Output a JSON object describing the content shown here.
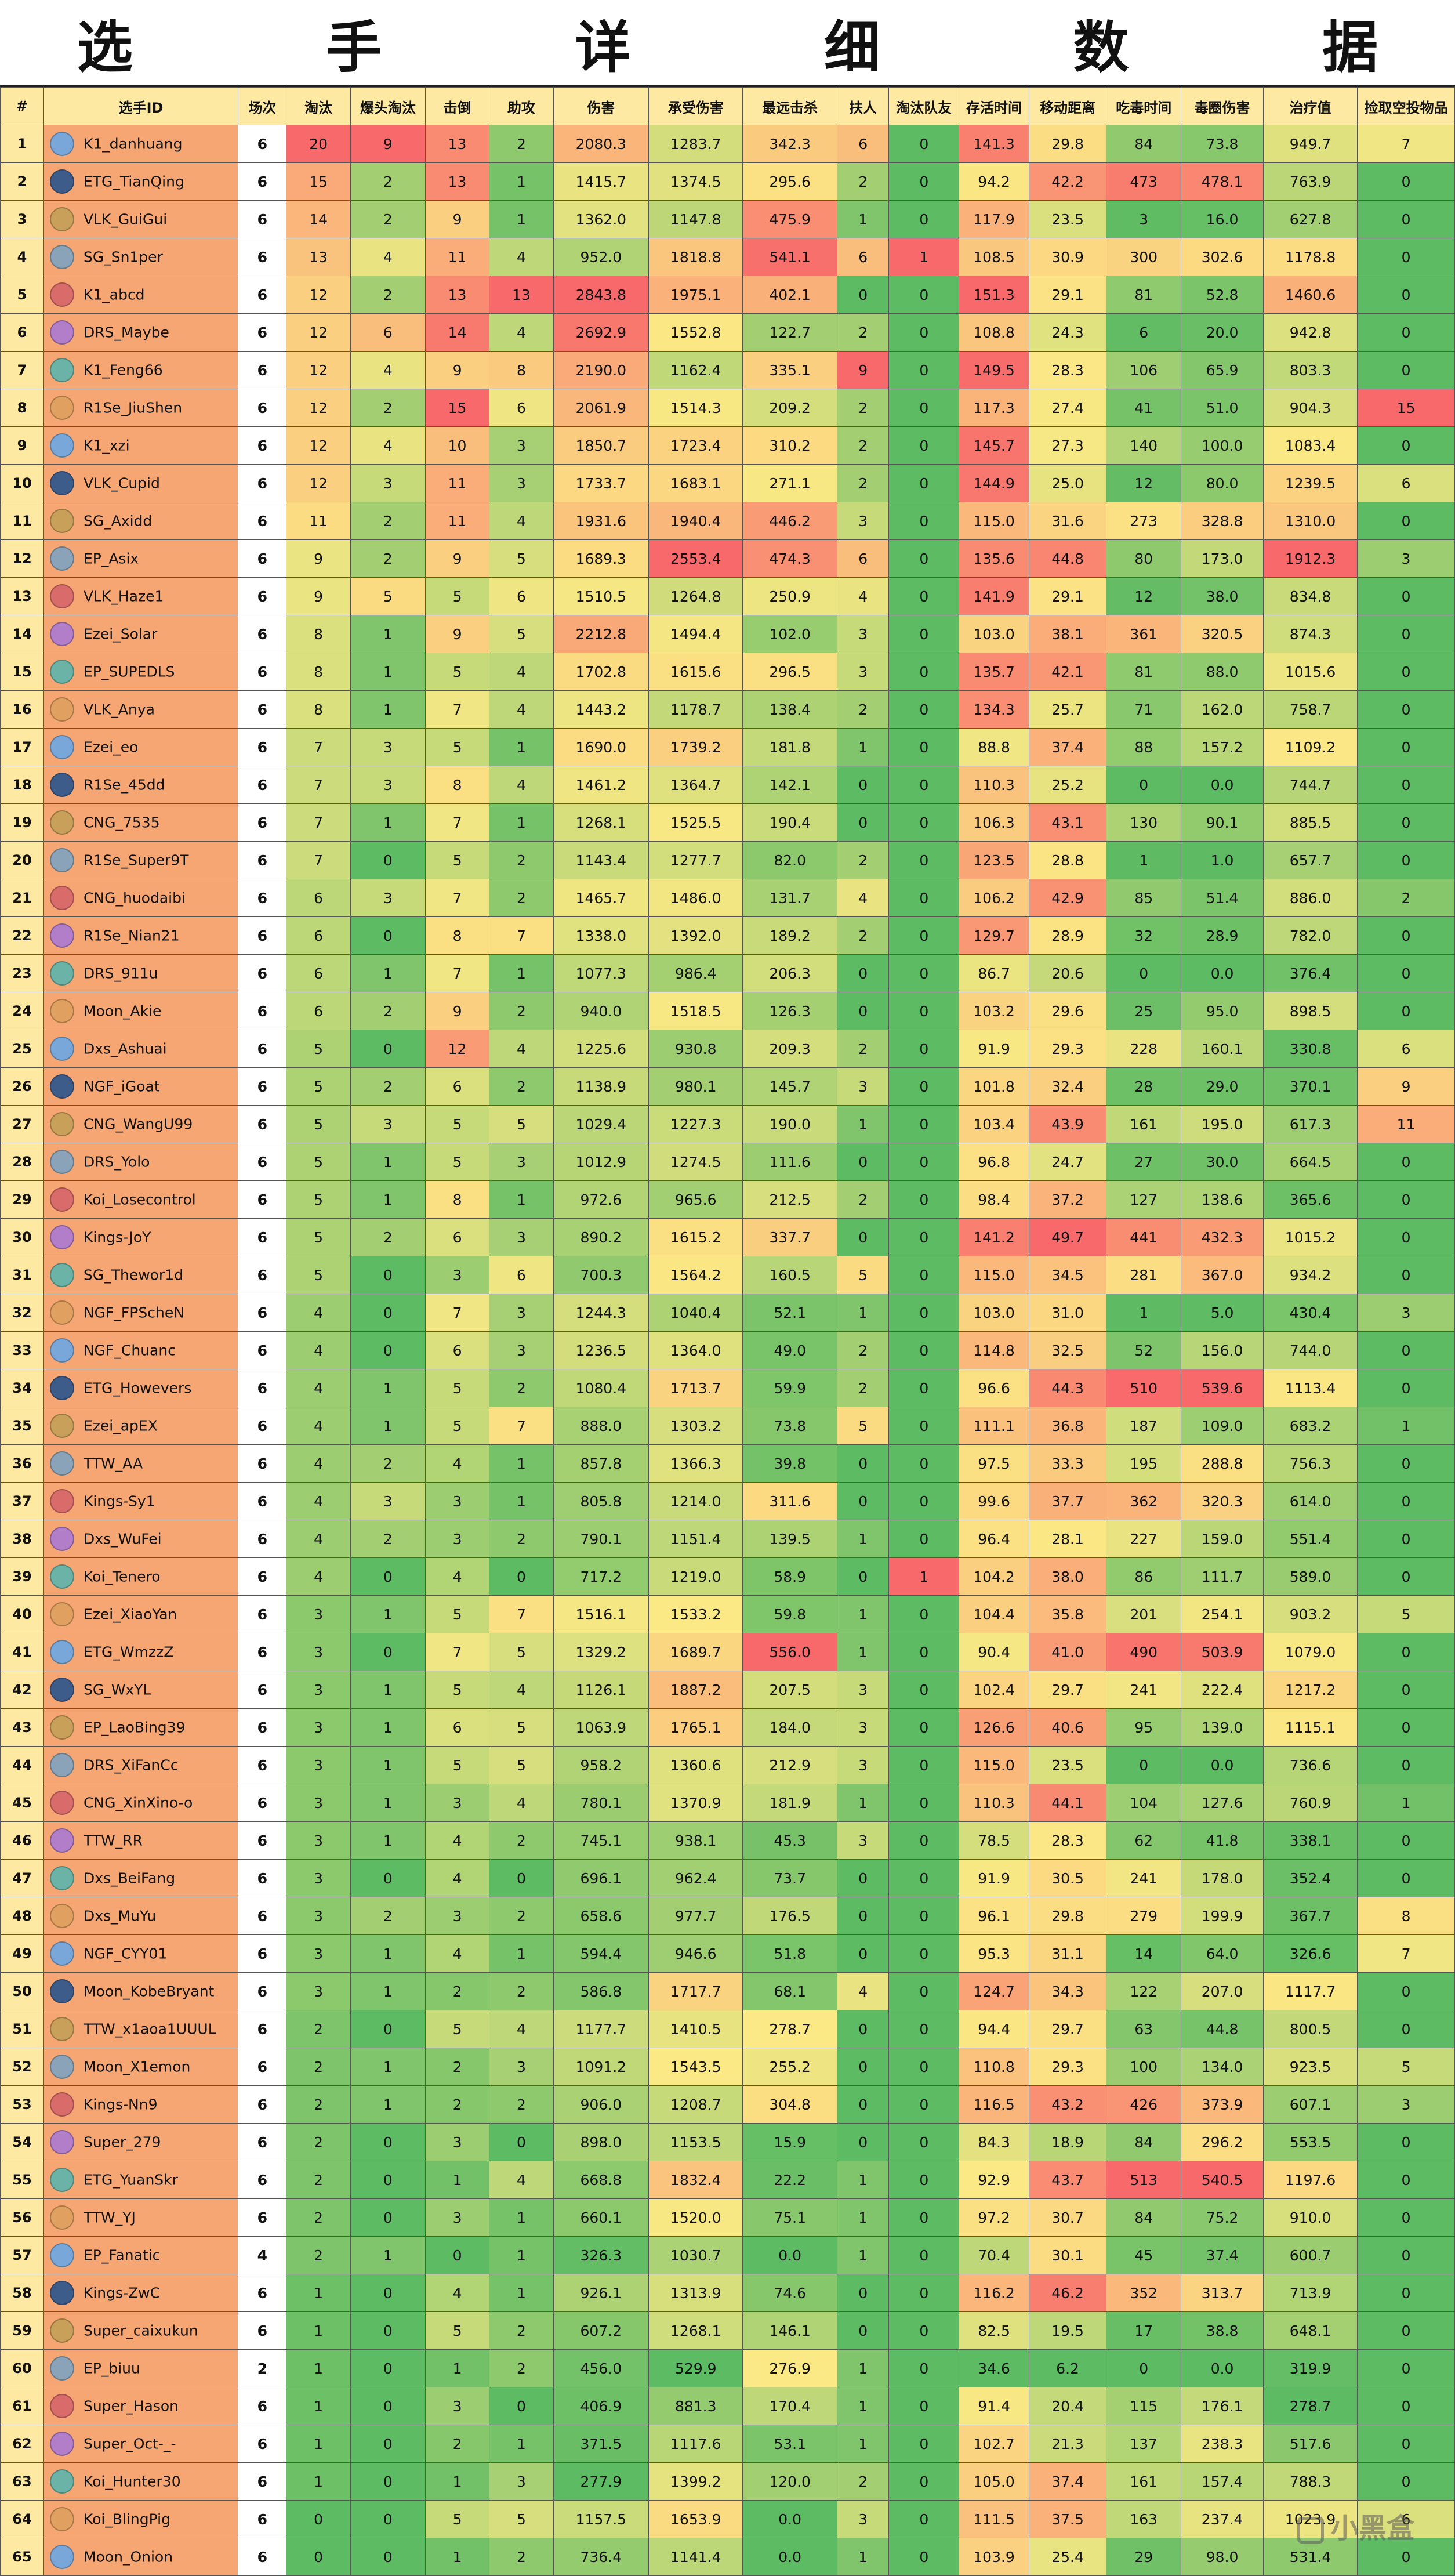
{
  "title": "选 手 详 细 数 据",
  "columns": [
    "#",
    "选手ID",
    "场次",
    "淘汰",
    "爆头淘汰",
    "击倒",
    "助攻",
    "伤害",
    "承受伤害",
    "最远击杀",
    "扶人",
    "淘汰队友",
    "存活时间",
    "移动距离",
    "吃毒时间",
    "毒圈伤害",
    "治疗值",
    "捡取空投物品"
  ],
  "rows": [
    [
      "1",
      "K1_danhuang",
      "6",
      "20",
      "9",
      "13",
      "2",
      "2080.3",
      "1283.7",
      "342.3",
      "6",
      "0",
      "141.3",
      "29.8",
      "84",
      "73.8",
      "949.7",
      "7"
    ],
    [
      "2",
      "ETG_TianQing",
      "6",
      "15",
      "2",
      "13",
      "1",
      "1415.7",
      "1374.5",
      "295.6",
      "2",
      "0",
      "94.2",
      "42.2",
      "473",
      "478.1",
      "763.9",
      "0"
    ],
    [
      "3",
      "VLK_GuiGui",
      "6",
      "14",
      "2",
      "9",
      "1",
      "1362.0",
      "1147.8",
      "475.9",
      "1",
      "0",
      "117.9",
      "23.5",
      "3",
      "16.0",
      "627.8",
      "0"
    ],
    [
      "4",
      "SG_Sn1per",
      "6",
      "13",
      "4",
      "11",
      "4",
      "952.0",
      "1818.8",
      "541.1",
      "6",
      "1",
      "108.5",
      "30.9",
      "300",
      "302.6",
      "1178.8",
      "0"
    ],
    [
      "5",
      "K1_abcd",
      "6",
      "12",
      "2",
      "13",
      "13",
      "2843.8",
      "1975.1",
      "402.1",
      "0",
      "0",
      "151.3",
      "29.1",
      "81",
      "52.8",
      "1460.6",
      "0"
    ],
    [
      "6",
      "DRS_Maybe",
      "6",
      "12",
      "6",
      "14",
      "4",
      "2692.9",
      "1552.8",
      "122.7",
      "2",
      "0",
      "108.8",
      "24.3",
      "6",
      "20.0",
      "942.8",
      "0"
    ],
    [
      "7",
      "K1_Feng66",
      "6",
      "12",
      "4",
      "9",
      "8",
      "2190.0",
      "1162.4",
      "335.1",
      "9",
      "0",
      "149.5",
      "28.3",
      "106",
      "65.9",
      "803.3",
      "0"
    ],
    [
      "8",
      "R1Se_JiuShen",
      "6",
      "12",
      "2",
      "15",
      "6",
      "2061.9",
      "1514.3",
      "209.2",
      "2",
      "0",
      "117.3",
      "27.4",
      "41",
      "51.0",
      "904.3",
      "15"
    ],
    [
      "9",
      "K1_xzi",
      "6",
      "12",
      "4",
      "10",
      "3",
      "1850.7",
      "1723.4",
      "310.2",
      "2",
      "0",
      "145.7",
      "27.3",
      "140",
      "100.0",
      "1083.4",
      "0"
    ],
    [
      "10",
      "VLK_Cupid",
      "6",
      "12",
      "3",
      "11",
      "3",
      "1733.7",
      "1683.1",
      "271.1",
      "2",
      "0",
      "144.9",
      "25.0",
      "12",
      "80.0",
      "1239.5",
      "6"
    ],
    [
      "11",
      "SG_Axidd",
      "6",
      "11",
      "2",
      "11",
      "4",
      "1931.6",
      "1940.4",
      "446.2",
      "3",
      "0",
      "115.0",
      "31.6",
      "273",
      "328.8",
      "1310.0",
      "0"
    ],
    [
      "12",
      "EP_Asix",
      "6",
      "9",
      "2",
      "9",
      "5",
      "1689.3",
      "2553.4",
      "474.3",
      "6",
      "0",
      "135.6",
      "44.8",
      "80",
      "173.0",
      "1912.3",
      "3"
    ],
    [
      "13",
      "VLK_Haze1",
      "6",
      "9",
      "5",
      "5",
      "6",
      "1510.5",
      "1264.8",
      "250.9",
      "4",
      "0",
      "141.9",
      "29.1",
      "12",
      "38.0",
      "834.8",
      "0"
    ],
    [
      "14",
      "Ezei_Solar",
      "6",
      "8",
      "1",
      "9",
      "5",
      "2212.8",
      "1494.4",
      "102.0",
      "3",
      "0",
      "103.0",
      "38.1",
      "361",
      "320.5",
      "874.3",
      "0"
    ],
    [
      "15",
      "EP_SUPEDLS",
      "6",
      "8",
      "1",
      "5",
      "4",
      "1702.8",
      "1615.6",
      "296.5",
      "3",
      "0",
      "135.7",
      "42.1",
      "81",
      "88.0",
      "1015.6",
      "0"
    ],
    [
      "16",
      "VLK_Anya",
      "6",
      "8",
      "1",
      "7",
      "4",
      "1443.2",
      "1178.7",
      "138.4",
      "2",
      "0",
      "134.3",
      "25.7",
      "71",
      "162.0",
      "758.7",
      "0"
    ],
    [
      "17",
      "Ezei_eo",
      "6",
      "7",
      "3",
      "5",
      "1",
      "1690.0",
      "1739.2",
      "181.8",
      "1",
      "0",
      "88.8",
      "37.4",
      "88",
      "157.2",
      "1109.2",
      "0"
    ],
    [
      "18",
      "R1Se_45dd",
      "6",
      "7",
      "3",
      "8",
      "4",
      "1461.2",
      "1364.7",
      "142.1",
      "0",
      "0",
      "110.3",
      "25.2",
      "0",
      "0.0",
      "744.7",
      "0"
    ],
    [
      "19",
      "CNG_7535",
      "6",
      "7",
      "1",
      "7",
      "1",
      "1268.1",
      "1525.5",
      "190.4",
      "0",
      "0",
      "106.3",
      "43.1",
      "130",
      "90.1",
      "885.5",
      "0"
    ],
    [
      "20",
      "R1Se_Super9T",
      "6",
      "7",
      "0",
      "5",
      "2",
      "1143.4",
      "1277.7",
      "82.0",
      "2",
      "0",
      "123.5",
      "28.8",
      "1",
      "1.0",
      "657.7",
      "0"
    ],
    [
      "21",
      "CNG_huodaibi",
      "6",
      "6",
      "3",
      "7",
      "2",
      "1465.7",
      "1486.0",
      "131.7",
      "4",
      "0",
      "106.2",
      "42.9",
      "85",
      "51.4",
      "886.0",
      "2"
    ],
    [
      "22",
      "R1Se_Nian21",
      "6",
      "6",
      "0",
      "8",
      "7",
      "1338.0",
      "1392.0",
      "189.2",
      "2",
      "0",
      "129.7",
      "28.9",
      "32",
      "28.9",
      "782.0",
      "0"
    ],
    [
      "23",
      "DRS_911u",
      "6",
      "6",
      "1",
      "7",
      "1",
      "1077.3",
      "986.4",
      "206.3",
      "0",
      "0",
      "86.7",
      "20.6",
      "0",
      "0.0",
      "376.4",
      "0"
    ],
    [
      "24",
      "Moon_Akie",
      "6",
      "6",
      "2",
      "9",
      "2",
      "940.0",
      "1518.5",
      "126.3",
      "0",
      "0",
      "103.2",
      "29.6",
      "25",
      "95.0",
      "898.5",
      "0"
    ],
    [
      "25",
      "Dxs_Ashuai",
      "6",
      "5",
      "0",
      "12",
      "4",
      "1225.6",
      "930.8",
      "209.3",
      "2",
      "0",
      "91.9",
      "29.3",
      "228",
      "160.1",
      "330.8",
      "6"
    ],
    [
      "26",
      "NGF_iGoat",
      "6",
      "5",
      "2",
      "6",
      "2",
      "1138.9",
      "980.1",
      "145.7",
      "3",
      "0",
      "101.8",
      "32.4",
      "28",
      "29.0",
      "370.1",
      "9"
    ],
    [
      "27",
      "CNG_WangU99",
      "6",
      "5",
      "3",
      "5",
      "5",
      "1029.4",
      "1227.3",
      "190.0",
      "1",
      "0",
      "103.4",
      "43.9",
      "161",
      "195.0",
      "617.3",
      "11"
    ],
    [
      "28",
      "DRS_Yolo",
      "6",
      "5",
      "1",
      "5",
      "3",
      "1012.9",
      "1274.5",
      "111.6",
      "0",
      "0",
      "96.8",
      "24.7",
      "27",
      "30.0",
      "664.5",
      "0"
    ],
    [
      "29",
      "Koi_Losecontrol",
      "6",
      "5",
      "1",
      "8",
      "1",
      "972.6",
      "965.6",
      "212.5",
      "2",
      "0",
      "98.4",
      "37.2",
      "127",
      "138.6",
      "365.6",
      "0"
    ],
    [
      "30",
      "Kings-JoY",
      "6",
      "5",
      "2",
      "6",
      "3",
      "890.2",
      "1615.2",
      "337.7",
      "0",
      "0",
      "141.2",
      "49.7",
      "441",
      "432.3",
      "1015.2",
      "0"
    ],
    [
      "31",
      "SG_Thewor1d",
      "6",
      "5",
      "0",
      "3",
      "6",
      "700.3",
      "1564.2",
      "160.5",
      "5",
      "0",
      "115.0",
      "34.5",
      "281",
      "367.0",
      "934.2",
      "0"
    ],
    [
      "32",
      "NGF_FPScheN",
      "6",
      "4",
      "0",
      "7",
      "3",
      "1244.3",
      "1040.4",
      "52.1",
      "1",
      "0",
      "103.0",
      "31.0",
      "1",
      "5.0",
      "430.4",
      "3"
    ],
    [
      "33",
      "NGF_Chuanc",
      "6",
      "4",
      "0",
      "6",
      "3",
      "1236.5",
      "1364.0",
      "49.0",
      "2",
      "0",
      "114.8",
      "32.5",
      "52",
      "156.0",
      "744.0",
      "0"
    ],
    [
      "34",
      "ETG_Howevers",
      "6",
      "4",
      "1",
      "5",
      "2",
      "1080.4",
      "1713.7",
      "59.9",
      "2",
      "0",
      "96.6",
      "44.3",
      "510",
      "539.6",
      "1113.4",
      "0"
    ],
    [
      "35",
      "Ezei_apEX",
      "6",
      "4",
      "1",
      "5",
      "7",
      "888.0",
      "1303.2",
      "73.8",
      "5",
      "0",
      "111.1",
      "36.8",
      "187",
      "109.0",
      "683.2",
      "1"
    ],
    [
      "36",
      "TTW_AA",
      "6",
      "4",
      "2",
      "4",
      "1",
      "857.8",
      "1366.3",
      "39.8",
      "0",
      "0",
      "97.5",
      "33.3",
      "195",
      "288.8",
      "756.3",
      "0"
    ],
    [
      "37",
      "Kings-Sy1",
      "6",
      "4",
      "3",
      "3",
      "1",
      "805.8",
      "1214.0",
      "311.6",
      "0",
      "0",
      "99.6",
      "37.7",
      "362",
      "320.3",
      "614.0",
      "0"
    ],
    [
      "38",
      "Dxs_WuFei",
      "6",
      "4",
      "2",
      "3",
      "2",
      "790.1",
      "1151.4",
      "139.5",
      "1",
      "0",
      "96.4",
      "28.1",
      "227",
      "159.0",
      "551.4",
      "0"
    ],
    [
      "39",
      "Koi_Tenero",
      "6",
      "4",
      "0",
      "4",
      "0",
      "717.2",
      "1219.0",
      "58.9",
      "0",
      "1",
      "104.2",
      "38.0",
      "86",
      "111.7",
      "589.0",
      "0"
    ],
    [
      "40",
      "Ezei_XiaoYan",
      "6",
      "3",
      "1",
      "5",
      "7",
      "1516.1",
      "1533.2",
      "59.8",
      "1",
      "0",
      "104.4",
      "35.8",
      "201",
      "254.1",
      "903.2",
      "5"
    ],
    [
      "41",
      "ETG_WmzzZ",
      "6",
      "3",
      "0",
      "7",
      "5",
      "1329.2",
      "1689.7",
      "556.0",
      "1",
      "0",
      "90.4",
      "41.0",
      "490",
      "503.9",
      "1079.0",
      "0"
    ],
    [
      "42",
      "SG_WxYL",
      "6",
      "3",
      "1",
      "5",
      "4",
      "1126.1",
      "1887.2",
      "207.5",
      "3",
      "0",
      "102.4",
      "29.7",
      "241",
      "222.4",
      "1217.2",
      "0"
    ],
    [
      "43",
      "EP_LaoBing39",
      "6",
      "3",
      "1",
      "6",
      "5",
      "1063.9",
      "1765.1",
      "184.0",
      "3",
      "0",
      "126.6",
      "40.6",
      "95",
      "139.0",
      "1115.1",
      "0"
    ],
    [
      "44",
      "DRS_XiFanCc",
      "6",
      "3",
      "1",
      "5",
      "5",
      "958.2",
      "1360.6",
      "212.9",
      "3",
      "0",
      "115.0",
      "23.5",
      "0",
      "0.0",
      "736.6",
      "0"
    ],
    [
      "45",
      "CNG_XinXino-o",
      "6",
      "3",
      "1",
      "3",
      "4",
      "780.1",
      "1370.9",
      "181.9",
      "1",
      "0",
      "110.3",
      "44.1",
      "104",
      "127.6",
      "760.9",
      "1"
    ],
    [
      "46",
      "TTW_RR",
      "6",
      "3",
      "1",
      "4",
      "2",
      "745.1",
      "938.1",
      "45.3",
      "3",
      "0",
      "78.5",
      "28.3",
      "62",
      "41.8",
      "338.1",
      "0"
    ],
    [
      "47",
      "Dxs_BeiFang",
      "6",
      "3",
      "0",
      "4",
      "0",
      "696.1",
      "962.4",
      "73.7",
      "0",
      "0",
      "91.9",
      "30.5",
      "241",
      "178.0",
      "352.4",
      "0"
    ],
    [
      "48",
      "Dxs_MuYu",
      "6",
      "3",
      "2",
      "3",
      "2",
      "658.6",
      "977.7",
      "176.5",
      "0",
      "0",
      "96.1",
      "29.8",
      "279",
      "199.9",
      "367.7",
      "8"
    ],
    [
      "49",
      "NGF_CYY01",
      "6",
      "3",
      "1",
      "4",
      "1",
      "594.4",
      "946.6",
      "51.8",
      "0",
      "0",
      "95.3",
      "31.1",
      "14",
      "64.0",
      "326.6",
      "7"
    ],
    [
      "50",
      "Moon_KobeBryant",
      "6",
      "3",
      "1",
      "2",
      "2",
      "586.8",
      "1717.7",
      "68.1",
      "4",
      "0",
      "124.7",
      "34.3",
      "122",
      "207.0",
      "1117.7",
      "0"
    ],
    [
      "51",
      "TTW_x1aoa1UUUL",
      "6",
      "2",
      "0",
      "5",
      "4",
      "1177.7",
      "1410.5",
      "278.7",
      "0",
      "0",
      "94.4",
      "29.7",
      "63",
      "44.8",
      "800.5",
      "0"
    ],
    [
      "52",
      "Moon_X1emon",
      "6",
      "2",
      "1",
      "2",
      "3",
      "1091.2",
      "1543.5",
      "255.2",
      "0",
      "0",
      "110.8",
      "29.3",
      "100",
      "134.0",
      "923.5",
      "5"
    ],
    [
      "53",
      "Kings-Nn9",
      "6",
      "2",
      "1",
      "2",
      "2",
      "906.0",
      "1208.7",
      "304.8",
      "0",
      "0",
      "116.5",
      "43.2",
      "426",
      "373.9",
      "607.1",
      "3"
    ],
    [
      "54",
      "Super_279",
      "6",
      "2",
      "0",
      "3",
      "0",
      "898.0",
      "1153.5",
      "15.9",
      "0",
      "0",
      "84.3",
      "18.9",
      "84",
      "296.2",
      "553.5",
      "0"
    ],
    [
      "55",
      "ETG_YuanSkr",
      "6",
      "2",
      "0",
      "1",
      "4",
      "668.8",
      "1832.4",
      "22.2",
      "1",
      "0",
      "92.9",
      "43.7",
      "513",
      "540.5",
      "1197.6",
      "0"
    ],
    [
      "56",
      "TTW_YJ",
      "6",
      "2",
      "0",
      "3",
      "1",
      "660.1",
      "1520.0",
      "75.1",
      "1",
      "0",
      "97.2",
      "30.7",
      "84",
      "75.2",
      "910.0",
      "0"
    ],
    [
      "57",
      "EP_Fanatic",
      "4",
      "2",
      "1",
      "0",
      "1",
      "326.3",
      "1030.7",
      "0.0",
      "1",
      "0",
      "70.4",
      "30.1",
      "45",
      "37.4",
      "600.7",
      "0"
    ],
    [
      "58",
      "Kings-ZwC",
      "6",
      "1",
      "0",
      "4",
      "1",
      "926.1",
      "1313.9",
      "74.6",
      "0",
      "0",
      "116.2",
      "46.2",
      "352",
      "313.7",
      "713.9",
      "0"
    ],
    [
      "59",
      "Super_caixukun",
      "6",
      "1",
      "0",
      "5",
      "2",
      "607.2",
      "1268.1",
      "146.1",
      "0",
      "0",
      "82.5",
      "19.5",
      "17",
      "38.8",
      "648.1",
      "0"
    ],
    [
      "60",
      "EP_biuu",
      "2",
      "1",
      "0",
      "1",
      "2",
      "456.0",
      "529.9",
      "276.9",
      "1",
      "0",
      "34.6",
      "6.2",
      "0",
      "0.0",
      "319.9",
      "0"
    ],
    [
      "61",
      "Super_Hason",
      "6",
      "1",
      "0",
      "3",
      "0",
      "406.9",
      "881.3",
      "170.4",
      "1",
      "0",
      "91.4",
      "20.4",
      "115",
      "176.1",
      "278.7",
      "0"
    ],
    [
      "62",
      "Super_Oct-_-",
      "6",
      "1",
      "0",
      "2",
      "1",
      "371.5",
      "1117.6",
      "53.1",
      "1",
      "0",
      "102.7",
      "21.3",
      "137",
      "238.3",
      "517.6",
      "0"
    ],
    [
      "63",
      "Koi_Hunter30",
      "6",
      "1",
      "0",
      "1",
      "3",
      "277.9",
      "1399.2",
      "120.0",
      "2",
      "0",
      "105.0",
      "37.4",
      "161",
      "157.4",
      "788.3",
      "0"
    ],
    [
      "64",
      "Koi_BlingPig",
      "6",
      "0",
      "0",
      "5",
      "5",
      "1157.5",
      "1653.9",
      "0.0",
      "3",
      "0",
      "111.5",
      "37.5",
      "163",
      "237.4",
      "1023.9",
      "6"
    ],
    [
      "65",
      "Moon_Onion",
      "6",
      "0",
      "0",
      "1",
      "2",
      "736.4",
      "1141.4",
      "0.0",
      "1",
      "0",
      "103.9",
      "25.4",
      "29",
      "98.0",
      "531.4",
      "0"
    ]
  ],
  "palette": {
    "low": "#5dbb63",
    "mid": "#fbe985",
    "high": "#f8696b",
    "zero_green": "#5fb865",
    "header_bg": "#fde9a1",
    "player_bg": "#f6a673"
  },
  "watermark": "小黑盒"
}
